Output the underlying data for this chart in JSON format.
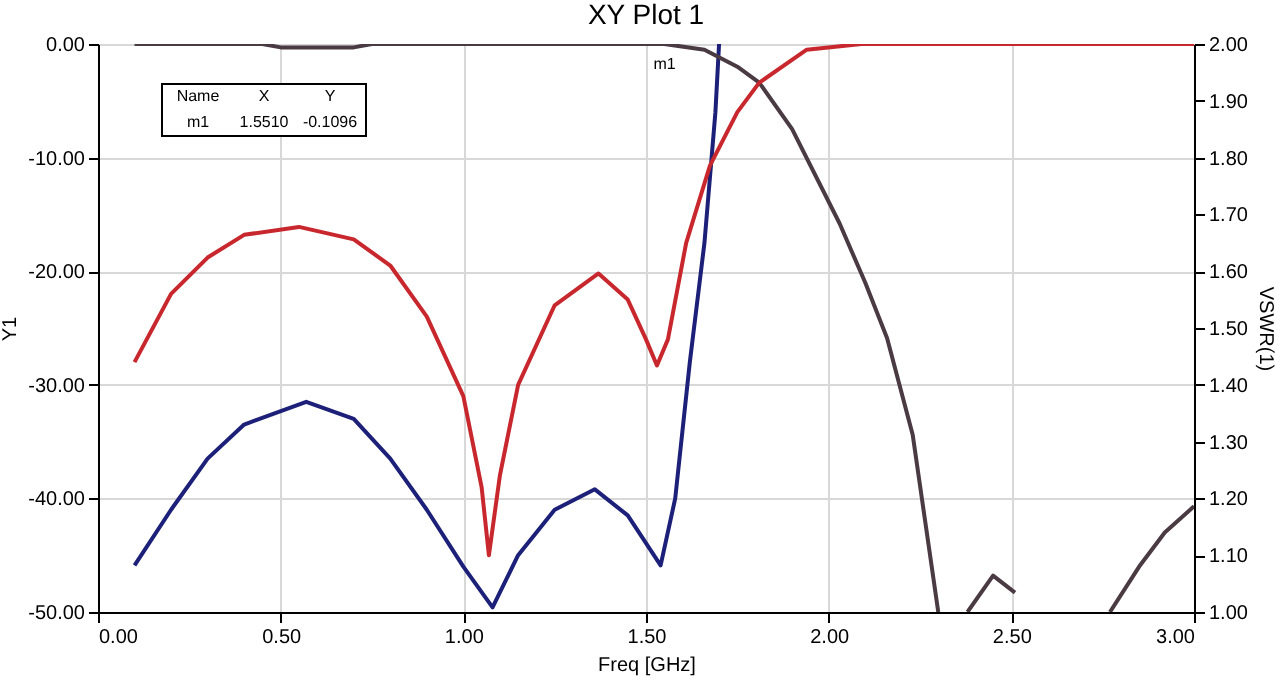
{
  "chart_data": {
    "type": "line",
    "title": "XY Plot 1",
    "xlabel": "Freq [GHz]",
    "ylabel": "Y1",
    "y2label": "VSWR(1)",
    "xlim": [
      0,
      3
    ],
    "xticks": [
      {
        "value": 0,
        "label": "0.00"
      },
      {
        "value": 0.5,
        "label": "0.50"
      },
      {
        "value": 1,
        "label": "1.00"
      },
      {
        "value": 1.5,
        "label": "1.50"
      },
      {
        "value": 2,
        "label": "2.00"
      },
      {
        "value": 2.5,
        "label": "2.50"
      },
      {
        "value": 3,
        "label": "3.00"
      }
    ],
    "ylim": [
      -50,
      0
    ],
    "yticks": [
      {
        "value": -50,
        "label": "-50.00"
      },
      {
        "value": -40,
        "label": "-40.00"
      },
      {
        "value": -30,
        "label": "-30.00"
      },
      {
        "value": -20,
        "label": "-20.00"
      },
      {
        "value": -10,
        "label": "-10.00"
      },
      {
        "value": 0,
        "label": "0.00"
      }
    ],
    "y2lim": [
      1,
      2
    ],
    "y2ticks": [
      {
        "value": 1,
        "label": "1.00"
      },
      {
        "value": 1.1,
        "label": "1.10"
      },
      {
        "value": 1.2,
        "label": "1.20"
      },
      {
        "value": 1.3,
        "label": "1.30"
      },
      {
        "value": 1.4,
        "label": "1.40"
      },
      {
        "value": 1.5,
        "label": "1.50"
      },
      {
        "value": 1.6,
        "label": "1.60"
      },
      {
        "value": 1.7,
        "label": "1.70"
      },
      {
        "value": 1.8,
        "label": "1.80"
      },
      {
        "value": 1.9,
        "label": "1.90"
      },
      {
        "value": 2,
        "label": "2.00"
      }
    ],
    "grid": true,
    "series": [
      {
        "color": "#1c2078",
        "x": [
          0.1,
          0.2,
          0.3,
          0.4,
          0.57,
          0.7,
          0.8,
          0.9,
          1.0,
          1.08,
          1.15,
          1.25,
          1.36,
          1.45,
          1.54,
          1.58,
          1.62,
          1.66,
          1.69,
          1.7
        ],
        "values": [
          -45.9,
          -41,
          -36.5,
          -33.5,
          -31.5,
          -33,
          -36.5,
          -41,
          -46,
          -49.6,
          -45,
          -41,
          -39.2,
          -41.5,
          -45.9,
          -40,
          -28,
          -17.5,
          -6,
          0
        ]
      },
      {
        "color": "#4a3a42",
        "x": [
          0.1,
          0.45,
          0.5,
          0.7,
          0.75,
          1.55,
          1.66,
          1.75,
          1.81,
          1.9,
          2.03,
          2.1,
          2.16,
          2.23,
          2.3,
          2.34,
          2.38,
          2.45,
          2.51,
          2.64,
          2.77,
          2.85,
          2.92,
          3.0
        ],
        "values": [
          0,
          0,
          -0.3,
          -0.3,
          0,
          0,
          -0.5,
          -2,
          -3.4,
          -7.5,
          -15.8,
          -21,
          -25.9,
          -34.4,
          -50,
          null,
          -50,
          -46.8,
          -48.3,
          null,
          -50,
          -46,
          -43,
          -40.7
        ]
      },
      {
        "color": "#c8282d",
        "axis": "y2",
        "x": [
          0.1,
          0.2,
          0.3,
          0.4,
          0.55,
          0.7,
          0.8,
          0.9,
          1.0,
          1.05,
          1.07,
          1.1,
          1.15,
          1.25,
          1.37,
          1.45,
          1.5,
          1.53,
          1.56,
          1.61,
          1.675,
          1.75,
          1.81,
          1.94,
          2.09,
          3.0
        ],
        "values": [
          1.44,
          1.56,
          1.624,
          1.664,
          1.678,
          1.656,
          1.61,
          1.52,
          1.38,
          1.22,
          1.1,
          1.24,
          1.4,
          1.54,
          1.596,
          1.55,
          1.48,
          1.434,
          1.48,
          1.65,
          1.786,
          1.88,
          1.932,
          1.99,
          2.0,
          2.0
        ]
      }
    ],
    "annotations": [
      {
        "text": "m1",
        "x": 1.551,
        "y": -0.1096
      },
      "Name",
      "X",
      "Y",
      "m1",
      "1.5510",
      "-0.1096"
    ]
  }
}
